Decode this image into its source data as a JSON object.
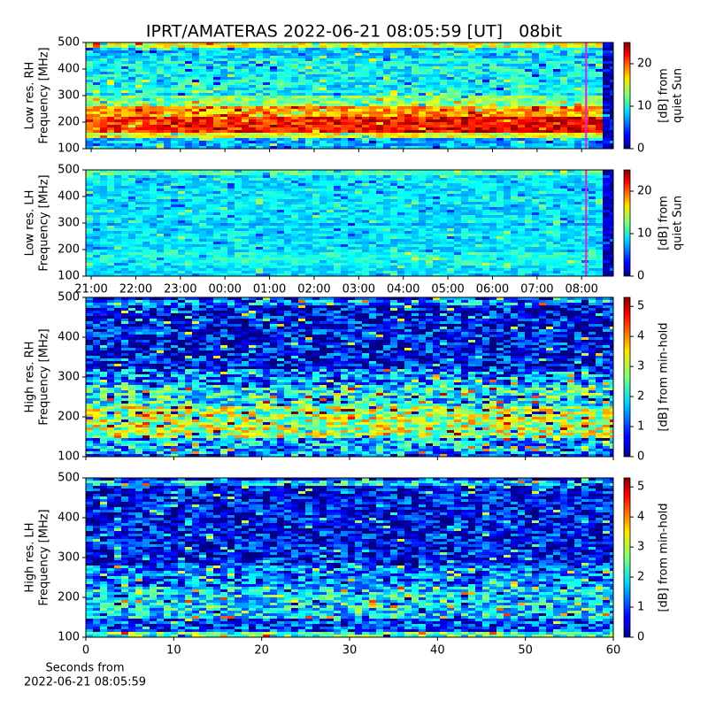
{
  "chart_data": [
    {
      "type": "heatmap",
      "title": "IPRT/AMATERAS 2022-06-21 08:05:59 [UT]   08bit",
      "ylabel": [
        "Low res. RH",
        "Frequency [MHz]"
      ],
      "ylim": [
        100,
        500
      ],
      "yticks": [
        100,
        200,
        300,
        400,
        500
      ],
      "xlim": [
        20.88,
        32.71
      ],
      "xticks": [
        {
          "value": 21,
          "label": "21:00"
        },
        {
          "value": 22,
          "label": "22:00"
        },
        {
          "value": 23,
          "label": "23:00"
        },
        {
          "value": 24,
          "label": "00:00"
        },
        {
          "value": 25,
          "label": "01:00"
        },
        {
          "value": 26,
          "label": "02:00"
        },
        {
          "value": 27,
          "label": "03:00"
        },
        {
          "value": 28,
          "label": "04:00"
        },
        {
          "value": 29,
          "label": "05:00"
        },
        {
          "value": 30,
          "label": "06:00"
        },
        {
          "value": 31,
          "label": "07:00"
        },
        {
          "value": 32,
          "label": "08:00"
        }
      ],
      "xtick_labels": false,
      "cursor_x": 32.1,
      "cursor_color": "#e020e0",
      "colormap": "jet",
      "colorbar": {
        "label": [
          "[dB] from",
          "quiet Sun"
        ],
        "lim": [
          0,
          25
        ],
        "ticks": [
          0,
          10,
          20
        ]
      }
    },
    {
      "type": "heatmap",
      "ylabel": [
        "Low res. LH",
        "Frequency [MHz]"
      ],
      "ylim": [
        100,
        500
      ],
      "yticks": [
        100,
        200,
        300,
        400,
        500
      ],
      "xlim": [
        20.88,
        32.71
      ],
      "xticks": [
        {
          "value": 21,
          "label": "21:00"
        },
        {
          "value": 22,
          "label": "22:00"
        },
        {
          "value": 23,
          "label": "23:00"
        },
        {
          "value": 24,
          "label": "00:00"
        },
        {
          "value": 25,
          "label": "01:00"
        },
        {
          "value": 26,
          "label": "02:00"
        },
        {
          "value": 27,
          "label": "03:00"
        },
        {
          "value": 28,
          "label": "04:00"
        },
        {
          "value": 29,
          "label": "05:00"
        },
        {
          "value": 30,
          "label": "06:00"
        },
        {
          "value": 31,
          "label": "07:00"
        },
        {
          "value": 32,
          "label": "08:00"
        }
      ],
      "xtick_labels": true,
      "cursor_x": 32.1,
      "cursor_color": "#e020e0",
      "colormap": "jet",
      "colorbar": {
        "label": [
          "[dB] from",
          "quiet Sun"
        ],
        "lim": [
          0,
          25
        ],
        "ticks": [
          0,
          10,
          20
        ]
      }
    },
    {
      "type": "heatmap",
      "ylabel": [
        "High res. RH",
        "Frequency [MHz]"
      ],
      "ylim": [
        100,
        500
      ],
      "yticks": [
        100,
        200,
        300,
        400,
        500
      ],
      "xlim": [
        0,
        60
      ],
      "xticks": [
        0,
        10,
        20,
        30,
        40,
        50,
        60
      ],
      "xtick_labels": false,
      "colormap": "jet",
      "colorbar": {
        "label": [
          "[dB] from min-hold"
        ],
        "lim": [
          0,
          5.3
        ],
        "ticks": [
          0,
          1,
          2,
          3,
          4,
          5
        ]
      }
    },
    {
      "type": "heatmap",
      "ylabel": [
        "High res. LH",
        "Frequency [MHz]"
      ],
      "ylim": [
        100,
        500
      ],
      "yticks": [
        100,
        200,
        300,
        400,
        500
      ],
      "xlim": [
        0,
        60
      ],
      "xticks": [
        0,
        10,
        20,
        30,
        40,
        50,
        60
      ],
      "xtick_labels": true,
      "xlabel": [
        "Seconds from",
        "2022-06-21 08:05:59"
      ],
      "colormap": "jet",
      "colorbar": {
        "label": [
          "[dB] from min-hold"
        ],
        "lim": [
          0,
          5.3
        ],
        "ticks": [
          0,
          1,
          2,
          3,
          4,
          5
        ]
      }
    }
  ]
}
